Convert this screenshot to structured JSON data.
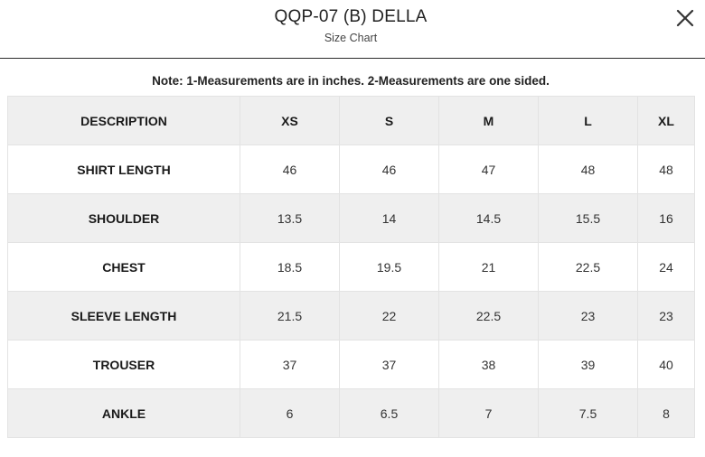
{
  "header": {
    "title": "QQP-07 (B) DELLA",
    "subtitle": "Size Chart",
    "close_icon": "close-icon"
  },
  "note": "Note: 1-Measurements are in inches. 2-Measurements are one sided.",
  "table": {
    "columns": [
      "DESCRIPTION",
      "XS",
      "S",
      "M",
      "L",
      "XL"
    ],
    "rows": [
      {
        "label": "SHIRT LENGTH",
        "values": [
          "46",
          "46",
          "47",
          "48",
          "48"
        ]
      },
      {
        "label": "SHOULDER",
        "values": [
          "13.5",
          "14",
          "14.5",
          "15.5",
          "16"
        ]
      },
      {
        "label": "CHEST",
        "values": [
          "18.5",
          "19.5",
          "21",
          "22.5",
          "24"
        ]
      },
      {
        "label": "SLEEVE LENGTH",
        "values": [
          "21.5",
          "22",
          "22.5",
          "23",
          "23"
        ]
      },
      {
        "label": "TROUSER",
        "values": [
          "37",
          "37",
          "38",
          "39",
          "40"
        ]
      },
      {
        "label": "ANKLE",
        "values": [
          "6",
          "6.5",
          "7",
          "7.5",
          "8"
        ]
      }
    ]
  }
}
